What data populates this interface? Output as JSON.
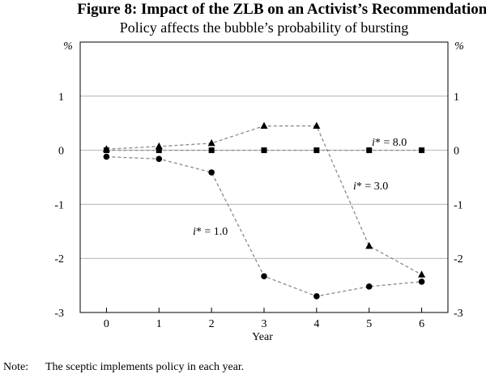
{
  "chart_data": {
    "type": "line",
    "title": "Figure 8: Impact of the ZLB on an Activist’s Recommendations",
    "subtitle": "Policy affects the bubble’s probability of bursting",
    "xlabel": "Year",
    "ylabel_left": "%",
    "ylabel_right": "%",
    "x": [
      0,
      1,
      2,
      3,
      4,
      5,
      6
    ],
    "x_tick_labels": [
      "0",
      "1",
      "2",
      "3",
      "4",
      "5",
      "6"
    ],
    "xlim": [
      -0.5,
      6.5
    ],
    "ylim": [
      -3,
      2
    ],
    "y_ticks": [
      1,
      0,
      -1,
      -2,
      -3
    ],
    "y_tick_labels": [
      "1",
      "0",
      "-1",
      "-2",
      "-3"
    ],
    "grid": "horizontal",
    "series": [
      {
        "name": "i* = 8.0",
        "label_main": "i",
        "label_rest": "* = 8.0",
        "marker": "square",
        "values": [
          0.0,
          0.0,
          0.0,
          0.0,
          0.0,
          0.0,
          0.0
        ]
      },
      {
        "name": "i* = 3.0",
        "label_main": "i",
        "label_rest": "* = 3.0",
        "marker": "triangle",
        "values": [
          0.02,
          0.07,
          0.13,
          0.45,
          0.45,
          -1.77,
          -2.3
        ]
      },
      {
        "name": "i* = 1.0",
        "label_main": "i",
        "label_rest": "* = 1.0",
        "marker": "circle",
        "values": [
          -0.12,
          -0.16,
          -0.41,
          -2.33,
          -2.7,
          -2.52,
          -2.43
        ]
      }
    ],
    "note_label": "Note:",
    "note_text": "The sceptic implements policy in each year."
  }
}
